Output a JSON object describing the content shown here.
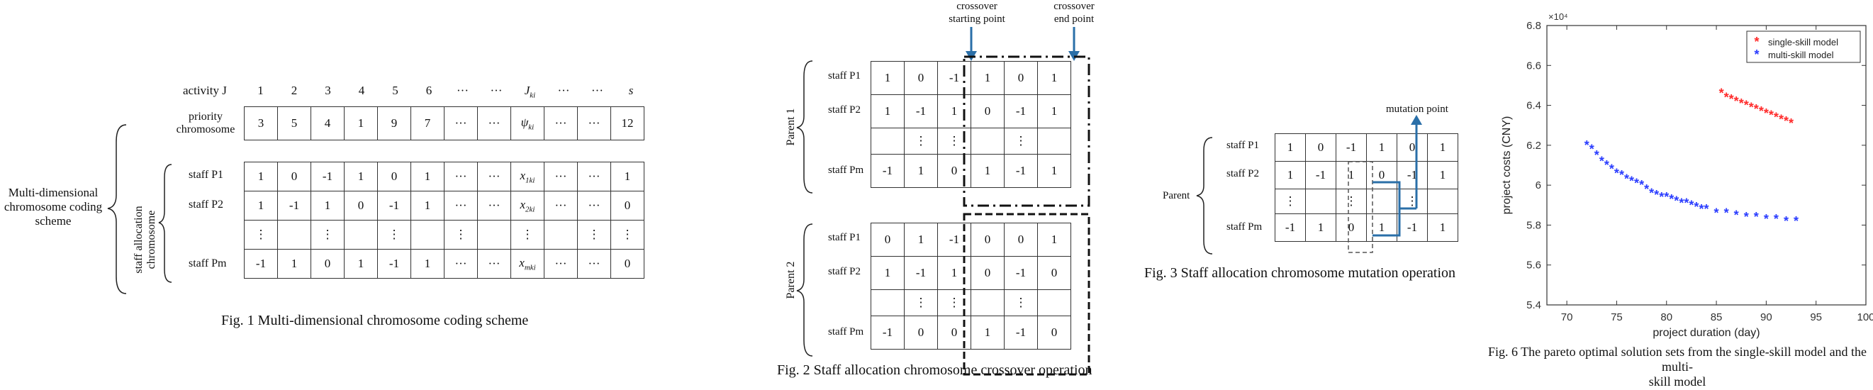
{
  "fig1": {
    "scheme_label_lines": [
      "Multi-dimensional",
      "chromosome coding",
      "scheme"
    ],
    "activity_label": "activity J",
    "activity_headers": [
      "1",
      "2",
      "3",
      "4",
      "5",
      "6",
      "···",
      "···",
      "J_ki",
      "···",
      "···",
      "s"
    ],
    "priority_label_lines": [
      "priority",
      "chromosome"
    ],
    "priority_values": [
      "3",
      "5",
      "4",
      "1",
      "9",
      "7",
      "···",
      "···",
      "ψ_ki",
      "···",
      "···",
      "12"
    ],
    "staff_allocation_label_lines": [
      "staff allocation",
      "chromosome"
    ],
    "staff_rows": [
      {
        "label": "staff P1",
        "values": [
          "1",
          "0",
          "-1",
          "1",
          "0",
          "1",
          "···",
          "···",
          "x_1ki",
          "···",
          "···",
          "1"
        ]
      },
      {
        "label": "staff P2",
        "values": [
          "1",
          "-1",
          "1",
          "0",
          "-1",
          "1",
          "···",
          "···",
          "x_2ki",
          "···",
          "···",
          "0"
        ]
      },
      {
        "label": "",
        "values": [
          "⋮",
          "",
          "⋮",
          "",
          "⋮",
          "",
          "⋮",
          "",
          "⋮",
          "",
          "⋮",
          "⋮"
        ]
      },
      {
        "label": "staff Pm",
        "values": [
          "-1",
          "1",
          "0",
          "1",
          "-1",
          "1",
          "···",
          "···",
          "x_mki",
          "···",
          "···",
          "0"
        ]
      }
    ],
    "caption": "Fig. 1 Multi-dimensional chromosome coding scheme"
  },
  "fig2": {
    "crossover_start_lines": [
      "crossover",
      "starting point"
    ],
    "crossover_end_lines": [
      "crossover",
      "end point"
    ],
    "parent1_label": "Parent 1",
    "parent2_label": "Parent 2",
    "parent1_rows": [
      {
        "label": "staff P1",
        "values": [
          "1",
          "0",
          "-1",
          "1",
          "0",
          "1"
        ]
      },
      {
        "label": "staff P2",
        "values": [
          "1",
          "-1",
          "1",
          "0",
          "-1",
          "1"
        ]
      },
      {
        "label": "",
        "values": [
          "",
          "⋮",
          "⋮",
          "",
          "⋮",
          ""
        ]
      },
      {
        "label": "staff Pm",
        "values": [
          "-1",
          "1",
          "0",
          "1",
          "-1",
          "1"
        ]
      }
    ],
    "parent2_rows": [
      {
        "label": "staff P1",
        "values": [
          "0",
          "1",
          "-1",
          "0",
          "0",
          "1"
        ]
      },
      {
        "label": "staff P2",
        "values": [
          "1",
          "-1",
          "1",
          "0",
          "-1",
          "0"
        ]
      },
      {
        "label": "",
        "values": [
          "",
          "⋮",
          "⋮",
          "",
          "⋮",
          ""
        ]
      },
      {
        "label": "staff Pm",
        "values": [
          "-1",
          "0",
          "0",
          "1",
          "-1",
          "0"
        ]
      }
    ],
    "caption": "Fig. 2 Staff allocation chromosome crossover operation"
  },
  "fig3": {
    "mutation_point_label": "mutation point",
    "parent_label": "Parent",
    "rows": [
      {
        "label": "staff P1",
        "values": [
          "1",
          "0",
          "-1",
          "1",
          "0",
          "1"
        ]
      },
      {
        "label": "staff P2",
        "values": [
          "1",
          "-1",
          "1",
          "0",
          "-1",
          "1"
        ]
      },
      {
        "label": "",
        "values": [
          "⋮",
          "",
          "⋮",
          "",
          "⋮",
          ""
        ]
      },
      {
        "label": "staff Pm",
        "values": [
          "-1",
          "1",
          "0",
          "1",
          "-1",
          "1"
        ]
      }
    ],
    "caption": "Fig. 3 Staff allocation chromosome mutation operation"
  },
  "chart_data": {
    "type": "scatter",
    "title": "",
    "xlabel": "project duration (day)",
    "ylabel": "project costs (CNY)",
    "y_exponent_label": "×10⁴",
    "xlim": [
      68,
      100
    ],
    "ylim": [
      5.4,
      6.8
    ],
    "x_ticks": [
      "70",
      "75",
      "80",
      "85",
      "90",
      "95",
      "100"
    ],
    "y_ticks": [
      "5.4",
      "5.6",
      "5.8",
      "6",
      "6.2",
      "6.4",
      "6.6",
      "6.8"
    ],
    "legend_position": "top-right",
    "series": [
      {
        "name": "single-skill model",
        "color": "#ff2a2a",
        "x": [
          85.5,
          86.0,
          86.5,
          87.0,
          87.5,
          88.0,
          88.5,
          89.0,
          89.5,
          90.0,
          90.5,
          91.0,
          91.5,
          92.0,
          92.5
        ],
        "y": [
          6.46,
          6.44,
          6.43,
          6.42,
          6.41,
          6.4,
          6.39,
          6.38,
          6.37,
          6.36,
          6.35,
          6.34,
          6.33,
          6.32,
          6.31
        ]
      },
      {
        "name": "multi-skill model",
        "color": "#2a3cff",
        "x": [
          72.0,
          72.5,
          73.0,
          73.5,
          74.0,
          74.5,
          75.0,
          75.5,
          76.0,
          76.5,
          77.0,
          77.5,
          78.0,
          78.5,
          79.0,
          79.5,
          80.0,
          80.5,
          81.0,
          81.5,
          82.0,
          82.5,
          83.0,
          83.5,
          84.0,
          85.0,
          86.0,
          87.0,
          88.0,
          89.0,
          90.0,
          91.0,
          92.0,
          93.0
        ],
        "y": [
          6.2,
          6.18,
          6.15,
          6.12,
          6.1,
          6.08,
          6.06,
          6.05,
          6.03,
          6.02,
          6.01,
          6.0,
          5.98,
          5.96,
          5.95,
          5.94,
          5.94,
          5.93,
          5.92,
          5.91,
          5.91,
          5.9,
          5.89,
          5.88,
          5.88,
          5.86,
          5.86,
          5.85,
          5.84,
          5.84,
          5.83,
          5.83,
          5.82,
          5.82
        ]
      }
    ],
    "caption_lines": [
      "Fig. 6 The pareto optimal solution sets from the single-skill model and the multi-",
      "skill model"
    ]
  }
}
